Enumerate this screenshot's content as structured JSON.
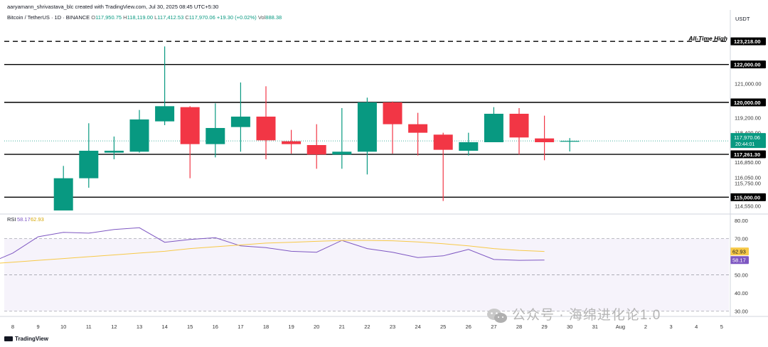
{
  "header": {
    "author_line": "aaryamann_shrivastava_blc created with TradingView.com, Jul 30, 2025 08:45 UTC+5:30",
    "symbol": "Bitcoin / TetherUS · 1D · BINANCE",
    "o_label": "O",
    "o_value": "117,950.75",
    "h_label": "H",
    "h_value": "118,119.00",
    "l_label": "L",
    "l_value": "117,412.53",
    "c_label": "C",
    "c_value": "117,970.06",
    "change": "+19.30 (+0.02%)",
    "vol_label": "Vol",
    "vol_value": "888.38",
    "currency": "USDT"
  },
  "colors": {
    "up": "#089981",
    "down": "#f23645",
    "rsi_line": "#7e57c2",
    "rsi_ma": "#f7c948",
    "level_line": "#000000"
  },
  "watermark": {
    "text": "公众号 · 海绵进化论1.0",
    "icon": "wechat-icon"
  },
  "tv_logo_text": "TradingView",
  "chart_data": [
    {
      "type": "candlestick",
      "title": "Bitcoin / TetherUS · 1D · BINANCE",
      "x_ticks": [
        "8",
        "9",
        "10",
        "11",
        "12",
        "13",
        "14",
        "15",
        "16",
        "17",
        "18",
        "19",
        "20",
        "21",
        "22",
        "23",
        "24",
        "25",
        "26",
        "27",
        "28",
        "29",
        "30",
        "31",
        "Aug",
        "2",
        "3",
        "4",
        "5"
      ],
      "y_ticks": [
        "121,000.00",
        "119,200.00",
        "118,400.00",
        "116,850.00",
        "116,050.00",
        "115,750.00",
        "114,550.00"
      ],
      "ylim": [
        114300,
        123900
      ],
      "candles": [
        {
          "x": "10",
          "o": 114300,
          "h": 116650,
          "l": 114300,
          "c": 116000
        },
        {
          "x": "11",
          "o": 116000,
          "h": 118900,
          "l": 115500,
          "c": 117450
        },
        {
          "x": "12",
          "o": 117350,
          "h": 118200,
          "l": 117000,
          "c": 117450
        },
        {
          "x": "13",
          "o": 117400,
          "h": 119600,
          "l": 117350,
          "c": 119100
        },
        {
          "x": "14",
          "o": 119000,
          "h": 122950,
          "l": 118800,
          "c": 119800
        },
        {
          "x": "15",
          "o": 119750,
          "h": 119800,
          "l": 116000,
          "c": 117800
        },
        {
          "x": "16",
          "o": 117800,
          "h": 119950,
          "l": 117100,
          "c": 118650
        },
        {
          "x": "17",
          "o": 118700,
          "h": 121050,
          "l": 117400,
          "c": 119250
        },
        {
          "x": "18",
          "o": 119250,
          "h": 120850,
          "l": 117000,
          "c": 118000
        },
        {
          "x": "19",
          "o": 117950,
          "h": 118550,
          "l": 117300,
          "c": 117800
        },
        {
          "x": "20",
          "o": 117750,
          "h": 118850,
          "l": 116500,
          "c": 117250
        },
        {
          "x": "21",
          "o": 117250,
          "h": 119700,
          "l": 116500,
          "c": 117400
        },
        {
          "x": "22",
          "o": 117400,
          "h": 120250,
          "l": 116200,
          "c": 120000
        },
        {
          "x": "23",
          "o": 120000,
          "h": 120050,
          "l": 117300,
          "c": 118850
        },
        {
          "x": "24",
          "o": 118850,
          "h": 119450,
          "l": 117200,
          "c": 118400
        },
        {
          "x": "25",
          "o": 118300,
          "h": 118400,
          "l": 114800,
          "c": 117500
        },
        {
          "x": "26",
          "o": 117450,
          "h": 118400,
          "l": 117200,
          "c": 117900
        },
        {
          "x": "27",
          "o": 117900,
          "h": 119750,
          "l": 117900,
          "c": 119400
        },
        {
          "x": "28",
          "o": 119400,
          "h": 119700,
          "l": 117250,
          "c": 118150
        },
        {
          "x": "29",
          "o": 118100,
          "h": 119300,
          "l": 116950,
          "c": 117900
        },
        {
          "x": "30",
          "o": 117950,
          "h": 118119,
          "l": 117412.53,
          "c": 117970.06
        }
      ],
      "levels": [
        {
          "value": 123218,
          "label": "123,218.00",
          "style": "dashed",
          "annotation": "All-Time High"
        },
        {
          "value": 122000,
          "label": "122,000.00",
          "style": "solid"
        },
        {
          "value": 120000,
          "label": "120,000.00",
          "style": "solid"
        },
        {
          "value": 117261.3,
          "label": "117,261.30",
          "style": "solid"
        },
        {
          "value": 115000,
          "label": "115,000.00",
          "style": "solid"
        }
      ],
      "price_tag": {
        "value": 117970.06,
        "label": "117,970.06",
        "countdown": "20:44:01"
      }
    },
    {
      "type": "line",
      "title": "RSI",
      "series": [
        {
          "name": "RSI",
          "current_label": "58.17",
          "values": [
            56,
            62,
            71,
            73.5,
            73,
            75,
            76,
            68,
            69.5,
            70.5,
            66,
            65,
            63,
            62.5,
            69,
            64.5,
            62.5,
            59.5,
            60.5,
            64,
            58.5,
            58,
            58.17
          ]
        },
        {
          "name": "MA",
          "current_label": "62.93",
          "values": [
            56,
            57,
            58,
            59,
            60,
            61,
            62,
            63,
            64.5,
            65.5,
            66.5,
            67.5,
            68,
            68.5,
            69,
            69,
            68.8,
            68.2,
            67.2,
            66,
            64.5,
            63.5,
            62.93
          ]
        }
      ],
      "x_indexes": [
        "7",
        "8",
        "9",
        "10",
        "11",
        "12",
        "13",
        "14",
        "15",
        "16",
        "17",
        "18",
        "19",
        "20",
        "21",
        "22",
        "23",
        "24",
        "25",
        "26",
        "27",
        "28",
        "29"
      ],
      "y_ticks": [
        "80.00",
        "70.00",
        "50.00",
        "40.00",
        "30.00"
      ],
      "overbought": 70,
      "oversold": 30,
      "ylim": [
        29,
        82
      ]
    }
  ]
}
